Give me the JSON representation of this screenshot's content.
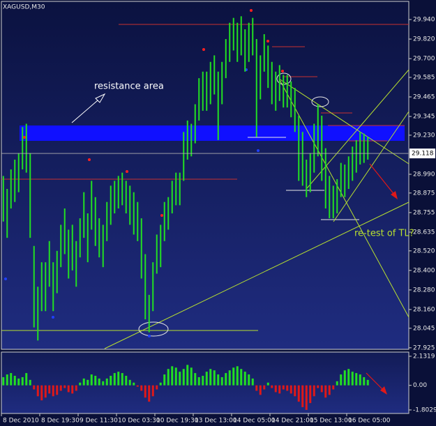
{
  "chart_data": [
    {
      "type": "hilo",
      "symbol": "XAGUSD,M30",
      "color": "#22e022",
      "categories": [
        "8 Dec 2010",
        null,
        null,
        null,
        null,
        null,
        null,
        null,
        null,
        null,
        "8 Dec 19:30",
        null,
        null,
        null,
        null,
        null,
        null,
        null,
        null,
        null,
        "9 Dec 11:30",
        null,
        null,
        null,
        null,
        null,
        null,
        null,
        null,
        null,
        "10 Dec 03:30",
        null,
        null,
        null,
        null,
        null,
        null,
        null,
        null,
        null,
        "10 Dec 19:30",
        null,
        null,
        null,
        null,
        null,
        null,
        null,
        null,
        null,
        "13 Dec 13:00",
        null,
        null,
        null,
        null,
        null,
        null,
        null,
        null,
        null,
        "14 Dec 05:00",
        null,
        null,
        null,
        null,
        null,
        null,
        null,
        null,
        null,
        "14 Dec 21:00",
        null,
        null,
        null,
        null,
        null,
        null,
        null,
        null,
        null,
        "15 Dec 13:00",
        null,
        null,
        null,
        null,
        null,
        null,
        null,
        null,
        null,
        "16 Dec 05:00",
        null,
        null,
        null,
        null,
        null
      ],
      "series": [
        {
          "name": "high",
          "values": [
            28.98,
            28.9,
            29.02,
            29.08,
            29.12,
            29.28,
            29.3,
            29.12,
            28.55,
            28.3,
            28.45,
            28.45,
            28.58,
            28.45,
            28.52,
            28.68,
            28.78,
            28.65,
            28.68,
            28.58,
            28.72,
            28.88,
            28.75,
            28.95,
            28.85,
            28.72,
            28.68,
            28.82,
            28.92,
            28.95,
            28.98,
            29.0,
            28.95,
            28.92,
            28.88,
            28.82,
            28.72,
            28.5,
            28.25,
            28.45,
            28.62,
            28.68,
            28.82,
            28.85,
            28.95,
            29.0,
            29.0,
            29.25,
            29.32,
            29.3,
            29.42,
            29.58,
            29.62,
            29.62,
            29.68,
            29.72,
            29.62,
            29.68,
            29.82,
            29.92,
            29.95,
            29.92,
            29.96,
            29.88,
            29.92,
            29.95,
            29.82,
            29.72,
            29.85,
            29.78,
            29.68,
            29.62,
            29.66,
            29.6,
            29.6,
            29.56,
            29.52,
            29.35,
            29.25,
            29.08,
            29.12,
            29.3,
            29.42,
            29.35,
            29.15,
            28.98,
            28.92,
            28.96,
            29.06,
            29.05,
            29.1,
            29.16,
            29.2,
            29.25,
            29.24,
            29.22
          ]
        },
        {
          "name": "low",
          "values": [
            28.7,
            28.6,
            28.78,
            28.82,
            28.88,
            29.02,
            29.0,
            28.6,
            28.05,
            27.97,
            28.15,
            28.15,
            28.3,
            28.15,
            28.26,
            28.42,
            28.5,
            28.35,
            28.4,
            28.3,
            28.48,
            28.6,
            28.45,
            28.65,
            28.55,
            28.48,
            28.42,
            28.58,
            28.68,
            28.75,
            28.78,
            28.8,
            28.75,
            28.68,
            28.62,
            28.58,
            28.35,
            28.1,
            28.02,
            28.15,
            28.38,
            28.42,
            28.58,
            28.65,
            28.75,
            28.8,
            28.8,
            28.95,
            29.08,
            29.1,
            29.18,
            29.32,
            29.38,
            29.38,
            29.42,
            29.48,
            29.2,
            29.42,
            29.58,
            29.68,
            29.75,
            29.68,
            29.72,
            29.62,
            29.68,
            29.72,
            29.22,
            29.45,
            29.62,
            29.52,
            29.42,
            29.38,
            29.44,
            29.4,
            29.4,
            29.34,
            29.25,
            28.95,
            28.92,
            28.85,
            28.88,
            29.0,
            29.1,
            28.95,
            28.78,
            28.72,
            28.72,
            28.75,
            28.85,
            28.85,
            28.9,
            28.95,
            29.0,
            29.05,
            29.06,
            29.08
          ]
        }
      ],
      "last_price": 29.118,
      "ylim": [
        27.92,
        30.047
      ],
      "yticks": [
        {
          "value": 29.94,
          "label": "29.940"
        },
        {
          "value": 29.82,
          "label": "29.820"
        },
        {
          "value": 29.7,
          "label": "29.700"
        },
        29.585,
        29.465,
        29.345,
        {
          "value": 29.23,
          "label": "29.230"
        },
        {
          "value": 28.99,
          "label": "28.990"
        },
        28.875,
        28.755,
        28.635,
        {
          "value": 28.52,
          "label": "28.520"
        },
        {
          "value": 28.4,
          "label": "28.400"
        },
        {
          "value": 28.28,
          "label": "28.280"
        },
        {
          "value": 28.16,
          "label": "28.160"
        },
        28.045,
        27.925
      ],
      "annotations": [
        "resistance area",
        "re-test of TL?"
      ]
    },
    {
      "type": "bar",
      "positive_color": "#22e022",
      "negative_color": "#e01818",
      "values": [
        0.6,
        0.8,
        0.9,
        0.7,
        0.5,
        0.6,
        0.9,
        0.4,
        -0.3,
        -0.8,
        -1.1,
        -0.9,
        -0.6,
        -0.8,
        -0.7,
        -0.4,
        -0.2,
        -0.5,
        -0.6,
        -0.4,
        0.2,
        0.5,
        0.4,
        0.8,
        0.7,
        0.5,
        0.3,
        0.5,
        0.7,
        0.9,
        1.0,
        0.9,
        0.7,
        0.4,
        0.2,
        -0.1,
        -0.4,
        -0.9,
        -1.2,
        -0.8,
        -0.3,
        0.2,
        0.8,
        1.2,
        1.4,
        1.3,
        1.0,
        1.2,
        1.5,
        1.3,
        0.9,
        0.6,
        0.7,
        1.0,
        1.2,
        1.1,
        0.8,
        0.6,
        0.9,
        1.1,
        1.3,
        1.4,
        1.2,
        1.0,
        0.8,
        0.5,
        -0.4,
        -0.7,
        -0.3,
        0.2,
        -0.2,
        -0.5,
        -0.6,
        -0.3,
        -0.4,
        -0.6,
        -0.8,
        -1.2,
        -1.6,
        -1.8,
        -1.3,
        -0.8,
        -0.2,
        -0.5,
        -0.9,
        -0.7,
        -0.3,
        0.3,
        0.8,
        1.1,
        1.2,
        1.0,
        0.9,
        0.8,
        0.6,
        0.4
      ],
      "ylim": [
        -2.01,
        2.54
      ],
      "yticks": [
        2.1319,
        {
          "value": 0,
          "label": "0.00"
        },
        -1.8029
      ]
    }
  ]
}
